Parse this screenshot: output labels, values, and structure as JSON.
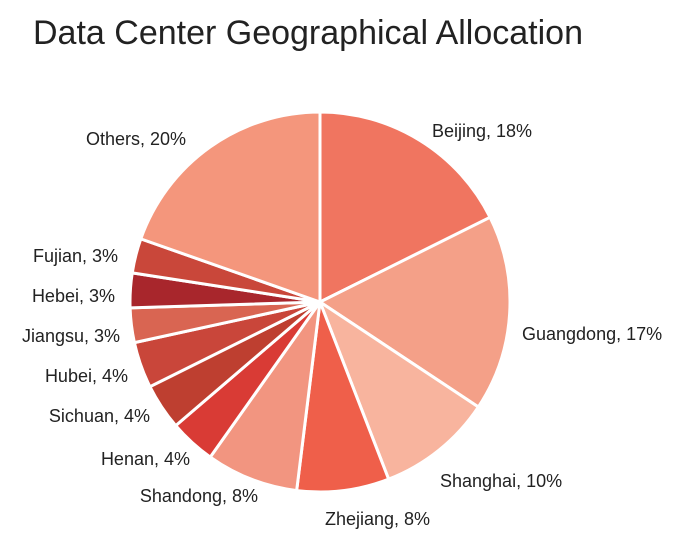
{
  "chart_data": {
    "type": "pie",
    "title": "Data Center Geographical Allocation",
    "categories": [
      "Beijing, 18%",
      "Guangdong, 17%",
      "Shanghai, 10%",
      "Zhejiang, 8%",
      "Shandong, 8%",
      "Henan, 4%",
      "Sichuan, 4%",
      "Hubei, 4%",
      "Jiangsu, 3%",
      "Hebei, 3%",
      "Fujian, 3%",
      "Others, 20%"
    ],
    "values": [
      18,
      17,
      10,
      8,
      8,
      4,
      4,
      4,
      3,
      3,
      3,
      20
    ],
    "colors": [
      "#f07560",
      "#f4a088",
      "#f8b49e",
      "#ef5f4a",
      "#f29580",
      "#d93b35",
      "#be3f30",
      "#c9463a",
      "#d96552",
      "#a8262c",
      "#c9473a",
      "#f4967c"
    ]
  }
}
